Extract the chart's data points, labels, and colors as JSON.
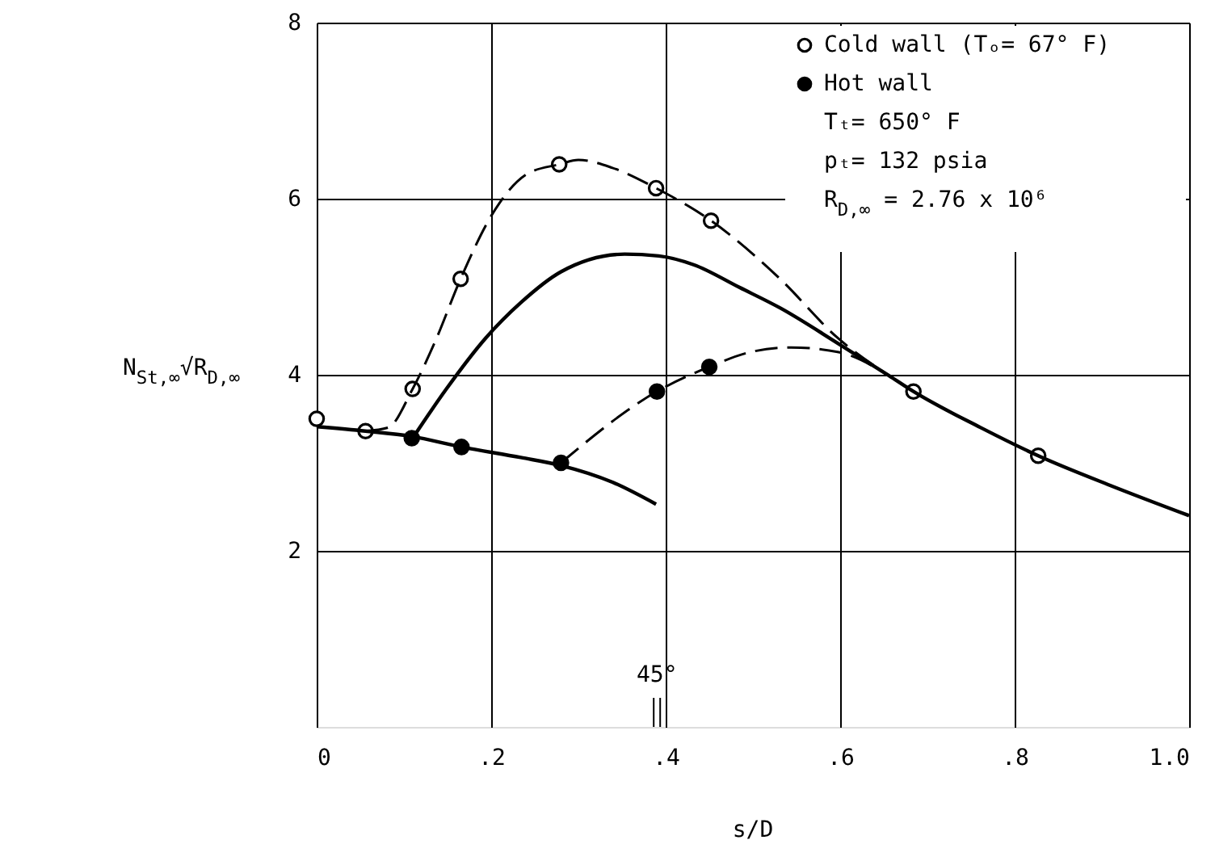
{
  "chart_data": {
    "type": "scatter",
    "xlabel": "s/D",
    "ylabel": "N$_{St,∞}$√R$_{D,∞}$",
    "xlim": [
      0,
      1.0
    ],
    "ylim": [
      0,
      8
    ],
    "xticks": [
      0,
      {
        "value": 0.2,
        "label": ".2"
      },
      {
        "value": 0.4,
        "label": ".4"
      },
      {
        "value": 0.6,
        "label": ".6"
      },
      {
        "value": 0.8,
        "label": ".8"
      },
      {
        "value": 1.0,
        "label": "1.0"
      }
    ],
    "yticks": [
      2,
      4,
      6,
      8
    ],
    "grid": true,
    "legend": "top right",
    "series": [
      {
        "name": "Cold wall (Tₒ= 67° F)",
        "color": "#ffffff",
        "marker": "circle",
        "x": [
          0.0,
          0.056,
          0.11,
          0.165,
          0.278,
          0.389,
          0.452,
          0.684,
          0.827
        ],
        "values": [
          3.5,
          3.36,
          3.84,
          5.09,
          6.39,
          6.12,
          5.75,
          3.81,
          3.08
        ]
      },
      {
        "name": "Hot wall",
        "color": "#000000",
        "marker": "circle",
        "x": [
          0.109,
          0.166,
          0.28,
          0.39,
          0.45
        ],
        "values": [
          3.28,
          3.18,
          3.0,
          3.81,
          4.09
        ]
      },
      {
        "type": "line",
        "color": "#000000",
        "marker": "none",
        "line_style": "dashed",
        "x": [
          0.056,
          0.082,
          0.11,
          0.135,
          0.165,
          0.201,
          0.241,
          0.278,
          0.3,
          0.339,
          0.389,
          0.452,
          0.531,
          0.597,
          0.656
        ],
        "values": [
          3.36,
          3.4,
          3.84,
          4.36,
          5.09,
          5.82,
          6.28,
          6.39,
          6.44,
          6.35,
          6.12,
          5.75,
          5.09,
          4.42,
          3.99
        ]
      },
      {
        "type": "line",
        "color": "#000000",
        "marker": "none",
        "line_style": "dashed",
        "x": [
          0.28,
          0.39,
          0.45,
          0.498,
          0.544,
          0.597,
          0.656
        ],
        "values": [
          3.0,
          3.81,
          4.09,
          4.26,
          4.31,
          4.26,
          3.99
        ]
      },
      {
        "type": "line",
        "color": "#000000",
        "marker": "none",
        "line_style": "solid",
        "x": [
          0.0,
          0.056,
          0.109,
          0.166,
          0.234,
          0.28,
          0.339,
          0.389
        ],
        "values": [
          3.41,
          3.36,
          3.3,
          3.18,
          3.06,
          2.97,
          2.78,
          2.53
        ]
      },
      {
        "type": "line",
        "color": "#000000",
        "marker": "none",
        "line_style": "solid",
        "x": [
          0.112,
          0.148,
          0.194,
          0.234,
          0.28,
          0.353,
          0.392,
          0.432,
          0.485,
          0.531,
          0.597,
          0.656,
          0.684,
          0.761,
          0.827,
          0.913,
          1.0
        ],
        "values": [
          3.31,
          3.83,
          4.42,
          4.82,
          5.17,
          5.37,
          5.35,
          5.25,
          4.99,
          4.76,
          4.36,
          3.99,
          3.81,
          3.4,
          3.08,
          2.73,
          2.4
        ]
      }
    ],
    "annotations": [
      "Tₜ= 650° F",
      "pₜ= 132 psia",
      "R$_{D,∞}$ = 2.76 x 10⁶",
      "45°"
    ]
  }
}
